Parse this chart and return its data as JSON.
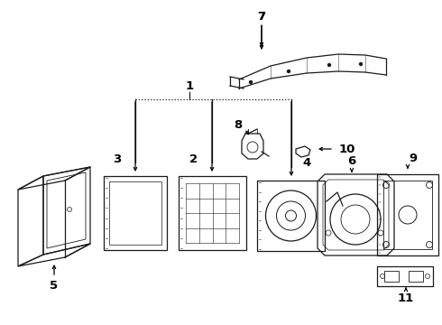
{
  "bg_color": "#ffffff",
  "line_color": "#1a1a1a",
  "fig_width": 4.9,
  "fig_height": 3.6,
  "dpi": 100,
  "label_fontsize": 9.5,
  "lw": 0.9
}
